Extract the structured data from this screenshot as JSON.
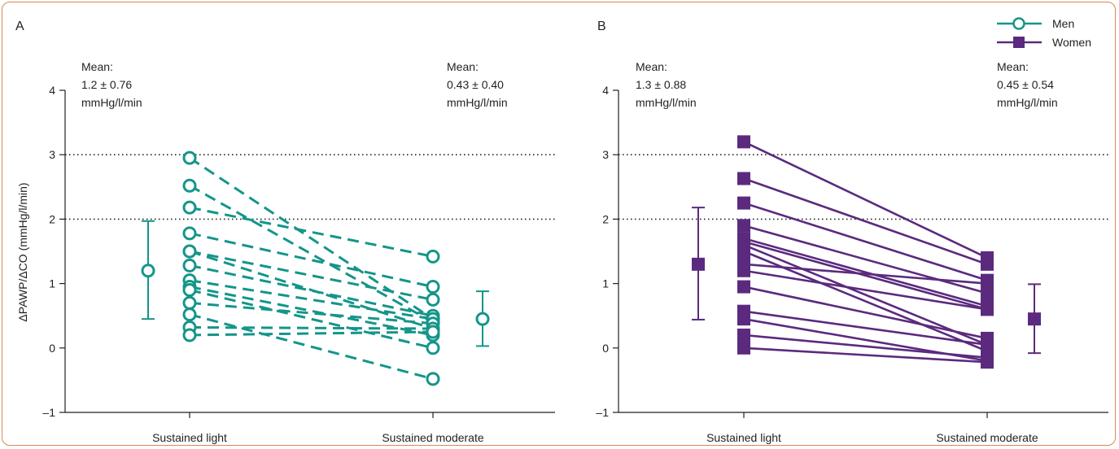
{
  "chart_data": [
    {
      "type": "line",
      "panel_label": "A",
      "ylabel": "ΔPAWP/ΔCO (mmHg/l/min)",
      "ylim": [
        -1,
        4
      ],
      "yticks": [
        "4",
        "3",
        "2",
        "1",
        "0",
        "–1"
      ],
      "categories": [
        "Sustained light",
        "Sustained moderate"
      ],
      "reference_lines": [
        3,
        2
      ],
      "color": "#14958a",
      "marker": "open-circle",
      "line_style": "dashed",
      "series": [
        {
          "values": [
            2.95,
            0.45
          ]
        },
        {
          "values": [
            2.52,
            0.4
          ]
        },
        {
          "values": [
            2.18,
            1.42
          ]
        },
        {
          "values": [
            1.78,
            0.95
          ]
        },
        {
          "values": [
            1.5,
            0.75
          ]
        },
        {
          "values": [
            1.5,
            0.3
          ]
        },
        {
          "values": [
            1.28,
            0.5
          ]
        },
        {
          "values": [
            1.05,
            0.45
          ]
        },
        {
          "values": [
            0.95,
            0.2
          ]
        },
        {
          "values": [
            0.9,
            0.0
          ]
        },
        {
          "values": [
            0.7,
            0.38
          ]
        },
        {
          "values": [
            0.52,
            -0.48
          ]
        },
        {
          "values": [
            0.32,
            0.3
          ]
        },
        {
          "values": [
            0.2,
            0.25
          ]
        }
      ],
      "mean_markers": [
        {
          "mean": 1.2,
          "low": 0.45,
          "high": 1.97
        },
        {
          "mean": 0.45,
          "low": 0.03,
          "high": 0.88
        }
      ],
      "mean_text_left": [
        "Mean:",
        "1.2 ± 0.76",
        "mmHg/l/min"
      ],
      "mean_text_right": [
        "Mean:",
        "0.43 ± 0.40",
        "mmHg/l/min"
      ]
    },
    {
      "type": "line",
      "panel_label": "B",
      "ylim": [
        -1,
        4
      ],
      "yticks": [
        "4",
        "3",
        "2",
        "1",
        "0",
        "–1"
      ],
      "categories": [
        "Sustained light",
        "Sustained moderate"
      ],
      "reference_lines": [
        3,
        2
      ],
      "color": "#5b2a7e",
      "marker": "filled-square",
      "line_style": "solid",
      "series": [
        {
          "values": [
            3.2,
            1.4
          ]
        },
        {
          "values": [
            2.63,
            1.3
          ]
        },
        {
          "values": [
            2.25,
            1.05
          ]
        },
        {
          "values": [
            1.9,
            0.85
          ]
        },
        {
          "values": [
            1.7,
            0.65
          ]
        },
        {
          "values": [
            1.65,
            0.6
          ]
        },
        {
          "values": [
            1.6,
            0.05
          ]
        },
        {
          "values": [
            1.5,
            -0.05
          ]
        },
        {
          "values": [
            1.3,
            1.0
          ]
        },
        {
          "values": [
            1.2,
            0.6
          ]
        },
        {
          "values": [
            0.95,
            0.15
          ]
        },
        {
          "values": [
            0.57,
            0.05
          ]
        },
        {
          "values": [
            0.45,
            -0.2
          ]
        },
        {
          "values": [
            0.2,
            -0.15
          ]
        },
        {
          "values": [
            0.0,
            -0.22
          ]
        }
      ],
      "mean_markers": [
        {
          "mean": 1.3,
          "low": 0.44,
          "high": 2.18
        },
        {
          "mean": 0.45,
          "low": -0.08,
          "high": 0.99
        }
      ],
      "mean_text_left": [
        "Mean:",
        "1.3 ± 0.88",
        "mmHg/l/min"
      ],
      "mean_text_right": [
        "Mean:",
        "0.45 ± 0.54",
        "mmHg/l/min"
      ],
      "legend": {
        "placement": "top-right",
        "items": [
          "Men",
          "Women"
        ]
      }
    }
  ]
}
